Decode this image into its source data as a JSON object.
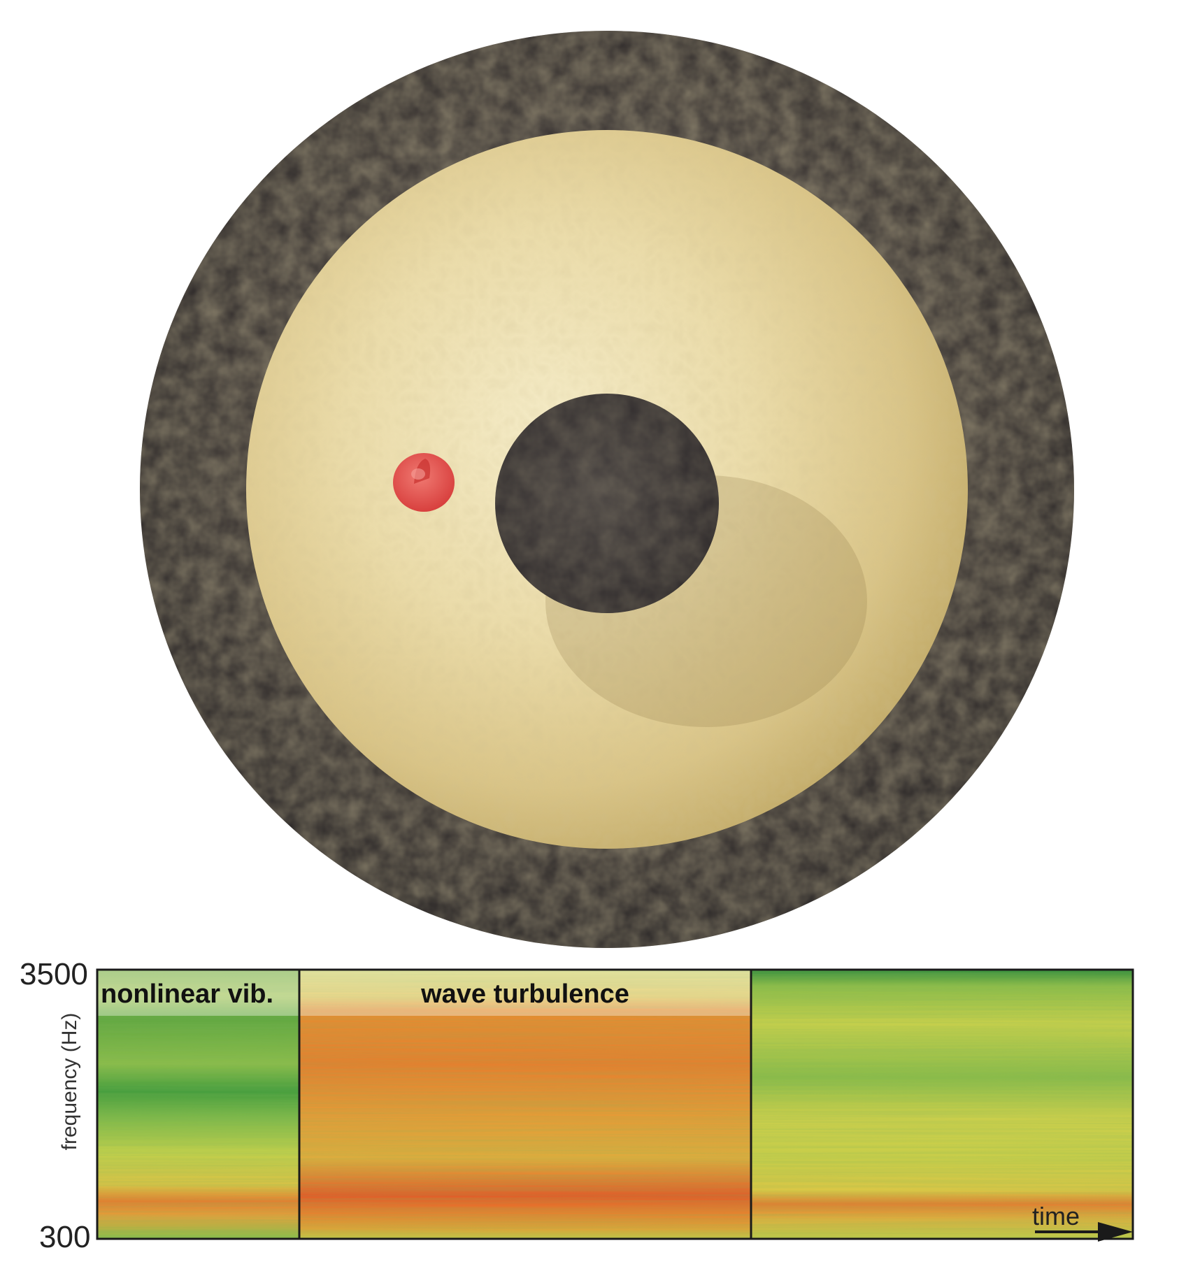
{
  "figure": {
    "colors": {
      "bronze_dark": "#2f2a2c",
      "gold_light": "#efe3b8",
      "gold_mid": "#d8c384",
      "marker": "#e8504e",
      "spectrogram_hot": "#ee5a22",
      "spectrogram_mid": "#d9d64a",
      "spectrogram_cool": "#3f9b3a"
    },
    "spectrogram": {
      "y_max_label": "3500",
      "y_min_label": "300",
      "ylabel": "frequency (Hz)",
      "xlabel": "time",
      "regions": [
        {
          "label": "nonlinear vib."
        },
        {
          "label": "wave turbulence"
        },
        {
          "label": ""
        }
      ]
    }
  }
}
